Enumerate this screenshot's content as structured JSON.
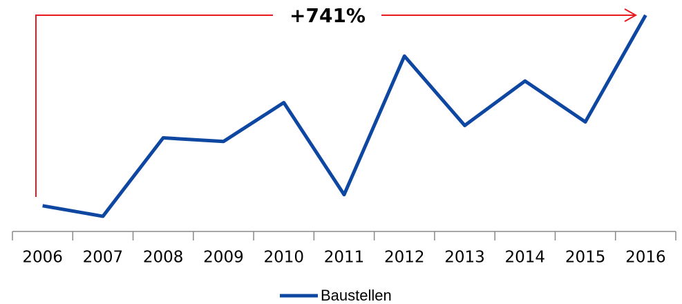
{
  "chart_data": {
    "type": "line",
    "categories": [
      "2006",
      "2007",
      "2008",
      "2009",
      "2010",
      "2011",
      "2012",
      "2013",
      "2014",
      "2015",
      "2016"
    ],
    "series": [
      {
        "name": "Baustellen",
        "color": "#0d47a1",
        "values": [
          100,
          59,
          364,
          350,
          501,
          143,
          682,
          412,
          585,
          426,
          841
        ]
      }
    ],
    "ylim": [
      0,
      900
    ],
    "annotation": "+741%",
    "legend": "bottom"
  }
}
